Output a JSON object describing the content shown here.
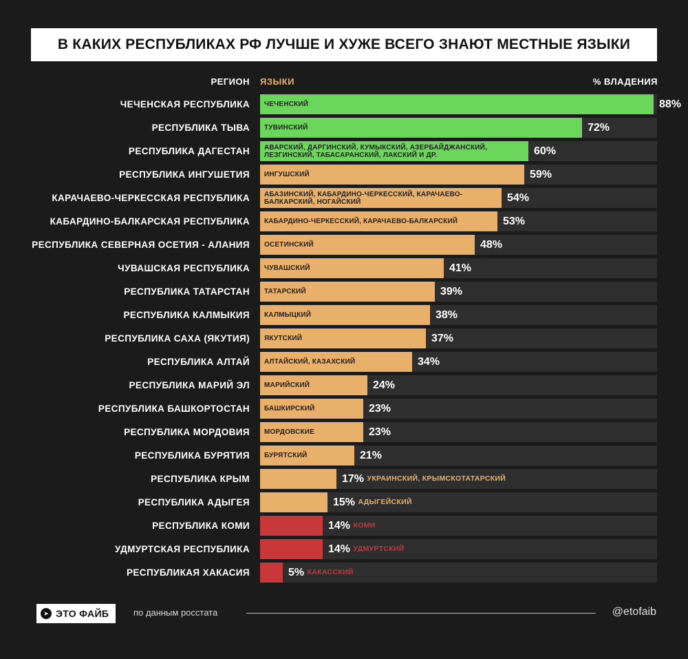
{
  "colors": {
    "green": "#6cd65c",
    "tan": "#e8b06a",
    "red": "#c8383a",
    "track": "#2e2e2e",
    "bg": "#1b1b1b"
  },
  "headers": {
    "region": "РЕГИОН",
    "languages": "ЯЗЫКИ",
    "percent": "% ВЛАДЕНИЯ"
  },
  "footer": {
    "brand": "ЭТО ФАЙБ",
    "brand_icon": "telegram-icon",
    "source": "по данным росстата",
    "handle": "@etofaib"
  },
  "chart_data": {
    "type": "bar",
    "title": "В КАКИХ РЕСПУБЛИКАХ РФ ЛУЧШЕ И ХУЖЕ ВСЕГО ЗНАЮТ МЕСТНЫЕ ЯЗЫКИ",
    "xlim": [
      0,
      100
    ],
    "rows": [
      {
        "region": "ЧЕЧЕНСКАЯ РЕСПУБЛИКА",
        "languages": "ЧЕЧЕНСКИЙ",
        "value": 88,
        "label": "88%",
        "color": "green",
        "label_pos": "inside"
      },
      {
        "region": "РЕСПУБЛИКА ТЫВА",
        "languages": "ТУВИНСКИЙ",
        "value": 72,
        "label": "72%",
        "color": "green",
        "label_pos": "inside"
      },
      {
        "region": "РЕСПУБЛИКА ДАГЕСТАН",
        "languages": "АВАРСКИЙ, ДАРГИНСКИЙ, КУМЫКСКИЙ, АЗЕРБАЙДЖАНСКИЙ,\nЛЕЗГИНСКИЙ, ТАБАСАРАНСКИЙ, ЛАКСКИЙ И ДР.",
        "value": 60,
        "label": "60%",
        "color": "green",
        "label_pos": "inside"
      },
      {
        "region": "РЕСПУБЛИКА ИНГУШЕТИЯ",
        "languages": "ИНГУШСКИЙ",
        "value": 59,
        "label": "59%",
        "color": "tan",
        "label_pos": "inside"
      },
      {
        "region": "КАРАЧАЕВО-ЧЕРКЕССКАЯ РЕСПУБЛИКА",
        "languages": "АБАЗИНСКИЙ, КАБАРДИНО-ЧЕРКЕССКИЙ, КАРАЧАЕВО-\nБАЛКАРСКИЙ, НОГАЙСКИЙ",
        "value": 54,
        "label": "54%",
        "color": "tan",
        "label_pos": "inside"
      },
      {
        "region": "КАБАРДИНО-БАЛКАРСКАЯ РЕСПУБЛИКА",
        "languages": "КАБАРДИНО-ЧЕРКЕССКИЙ, КАРАЧАЕВО-БАЛКАРСКИЙ",
        "value": 53,
        "label": "53%",
        "color": "tan",
        "label_pos": "inside"
      },
      {
        "region": "РЕСПУБЛИКА СЕВЕРНАЯ ОСЕТИЯ - АЛАНИЯ",
        "languages": "ОСЕТИНСКИЙ",
        "value": 48,
        "label": "48%",
        "color": "tan",
        "label_pos": "inside"
      },
      {
        "region": "ЧУВАШСКАЯ РЕСПУБЛИКА",
        "languages": "ЧУВАШСКИЙ",
        "value": 41,
        "label": "41%",
        "color": "tan",
        "label_pos": "inside"
      },
      {
        "region": "РЕСПУБЛИКА ТАТАРСТАН",
        "languages": "ТАТАРСКИЙ",
        "value": 39,
        "label": "39%",
        "color": "tan",
        "label_pos": "inside"
      },
      {
        "region": "РЕСПУБЛИКА КАЛМЫКИЯ",
        "languages": "КАЛМЫЦКИЙ",
        "value": 38,
        "label": "38%",
        "color": "tan",
        "label_pos": "inside"
      },
      {
        "region": "РЕСПУБЛИКА САХА (ЯКУТИЯ)",
        "languages": "ЯКУТСКИЙ",
        "value": 37,
        "label": "37%",
        "color": "tan",
        "label_pos": "inside"
      },
      {
        "region": "РЕСПУБЛИКА АЛТАЙ",
        "languages": "АЛТАЙСКИЙ, КАЗАХСКИЙ",
        "value": 34,
        "label": "34%",
        "color": "tan",
        "label_pos": "inside"
      },
      {
        "region": "РЕСПУБЛИКА МАРИЙ ЭЛ",
        "languages": "МАРИЙСКИЙ",
        "value": 24,
        "label": "24%",
        "color": "tan",
        "label_pos": "inside"
      },
      {
        "region": "РЕСПУБЛИКА БАШКОРТОСТАН",
        "languages": "БАШКИРСКИЙ",
        "value": 23,
        "label": "23%",
        "color": "tan",
        "label_pos": "inside"
      },
      {
        "region": "РЕСПУБЛИКА МОРДОВИЯ",
        "languages": "МОРДОВСКИЕ",
        "value": 23,
        "label": "23%",
        "color": "tan",
        "label_pos": "inside"
      },
      {
        "region": "РЕСПУБЛИКА БУРЯТИЯ",
        "languages": "БУРЯТСКИЙ",
        "value": 21,
        "label": "21%",
        "color": "tan",
        "label_pos": "inside"
      },
      {
        "region": "РЕСПУБЛИКА КРЫМ",
        "languages": "УКРАИНСКИЙ, КРЫМСКОТАТАРСКИЙ",
        "value": 17,
        "label": "17%",
        "color": "tan",
        "label_pos": "outside"
      },
      {
        "region": "РЕСПУБЛИКА АДЫГЕЯ",
        "languages": "АДЫГЕЙСКИЙ",
        "value": 15,
        "label": "15%",
        "color": "tan",
        "label_pos": "outside"
      },
      {
        "region": "РЕСПУБЛИКА КОМИ",
        "languages": "КОМИ",
        "value": 14,
        "label": "14%",
        "color": "red",
        "label_pos": "outside"
      },
      {
        "region": "УДМУРТСКАЯ РЕСПУБЛИКА",
        "languages": "УДМУРТСКИЙ",
        "value": 14,
        "label": "14%",
        "color": "red",
        "label_pos": "outside"
      },
      {
        "region": "РЕСПУБЛИКАЯ ХАКАСИЯ",
        "languages": "ХАКАССКИЙ",
        "value": 5,
        "label": "5%",
        "color": "red",
        "label_pos": "outside"
      }
    ]
  }
}
